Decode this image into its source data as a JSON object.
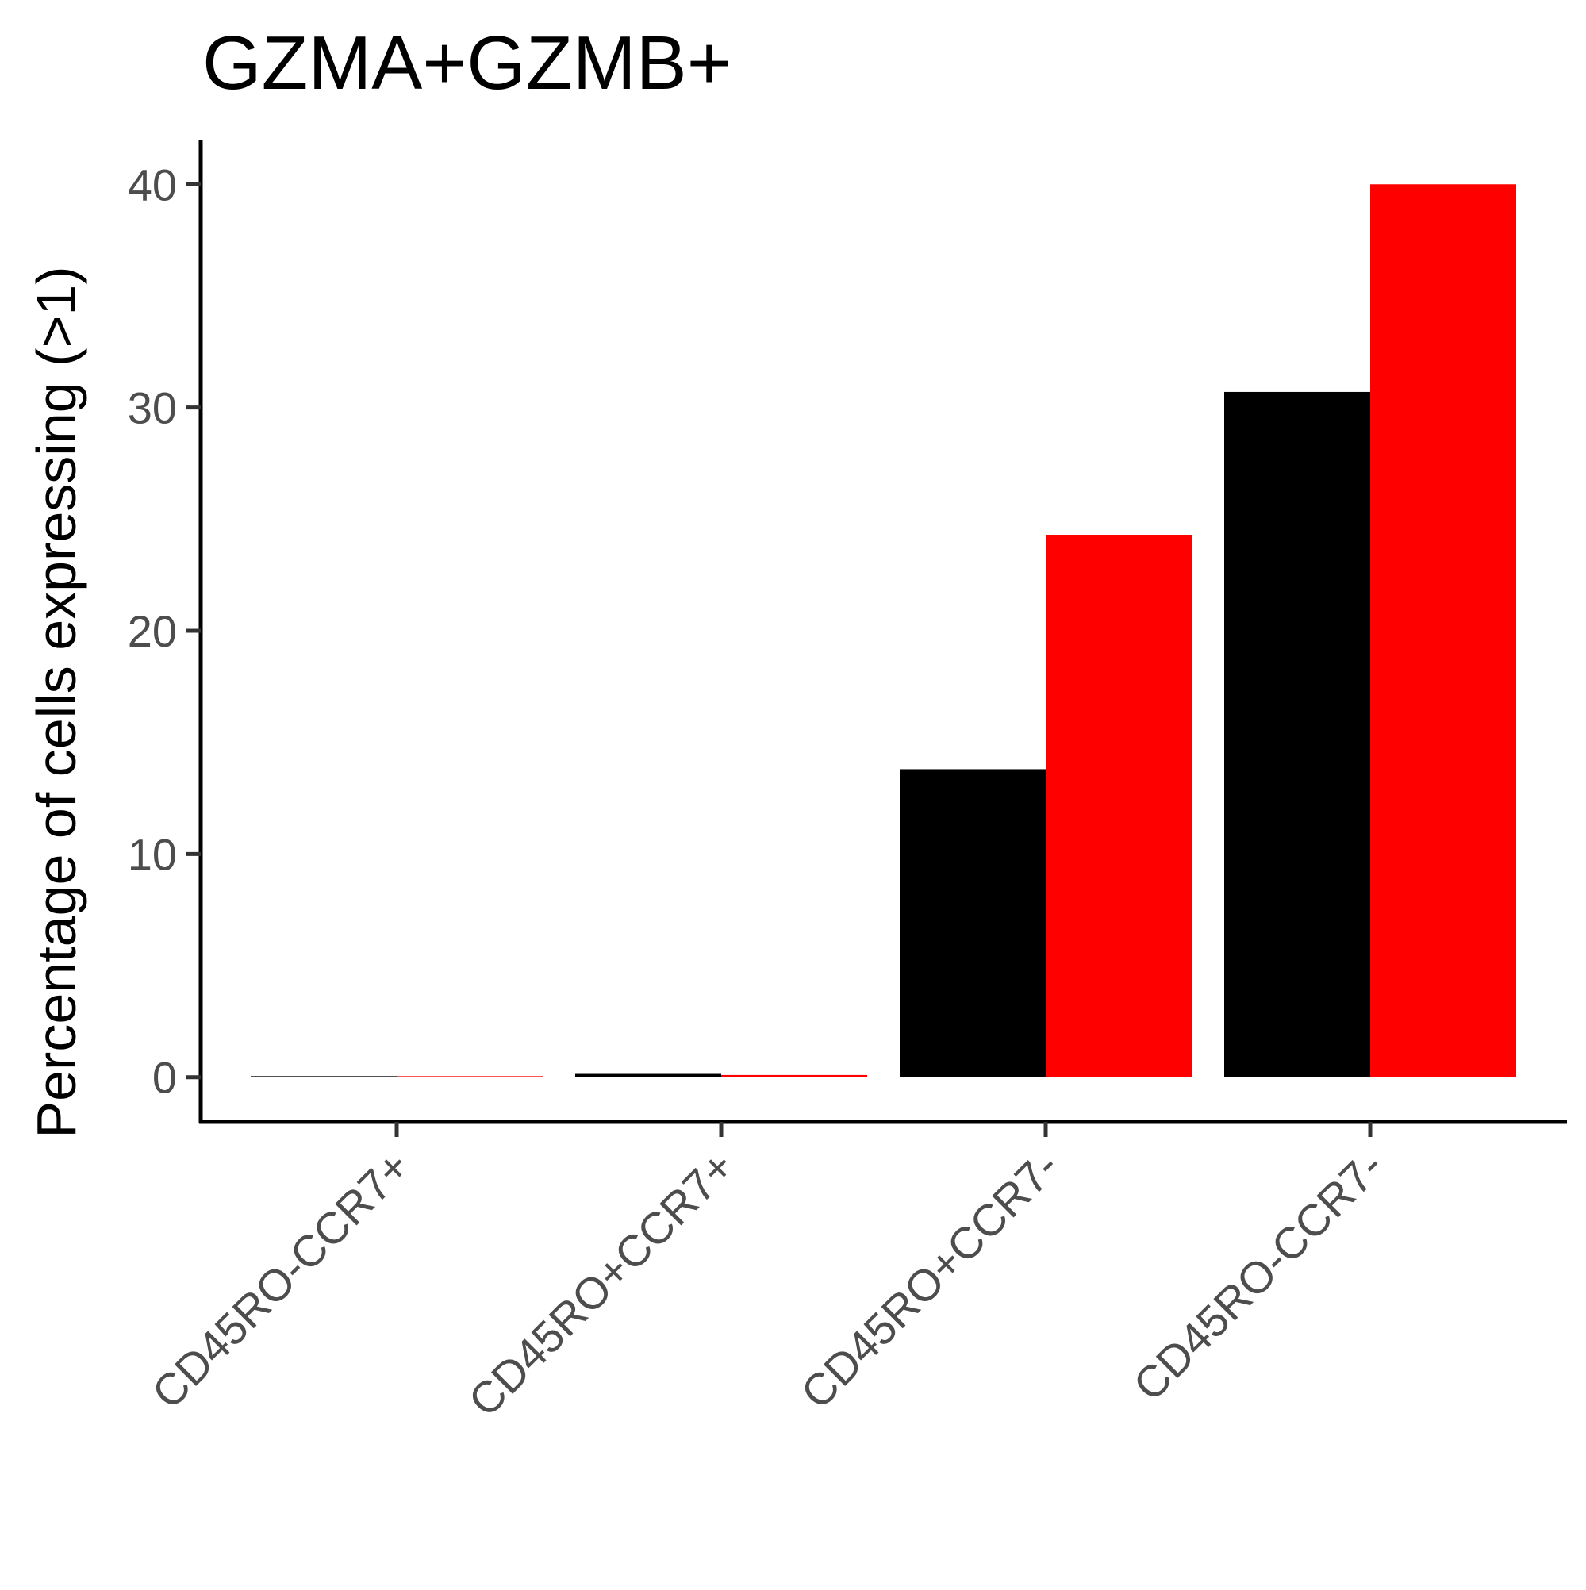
{
  "chart_data": {
    "type": "bar",
    "title": "GZMA+GZMB+",
    "xlabel": "",
    "ylabel": "Percentage of cells expressing (>1)",
    "categories": [
      "CD45RO-CCR7+",
      "CD45RO+CCR7+",
      "CD45RO+CCR7-",
      "CD45RO-CCR7-"
    ],
    "series": [
      {
        "color": "#000000",
        "values": [
          0.05,
          0.15,
          13.8,
          30.7
        ]
      },
      {
        "color": "#ff0000",
        "values": [
          0.05,
          0.1,
          24.3,
          40.0
        ]
      }
    ],
    "yticks": [
      0,
      10,
      20,
      30,
      40
    ],
    "ylim": [
      -2,
      42
    ],
    "grid": false,
    "legend": "none"
  }
}
